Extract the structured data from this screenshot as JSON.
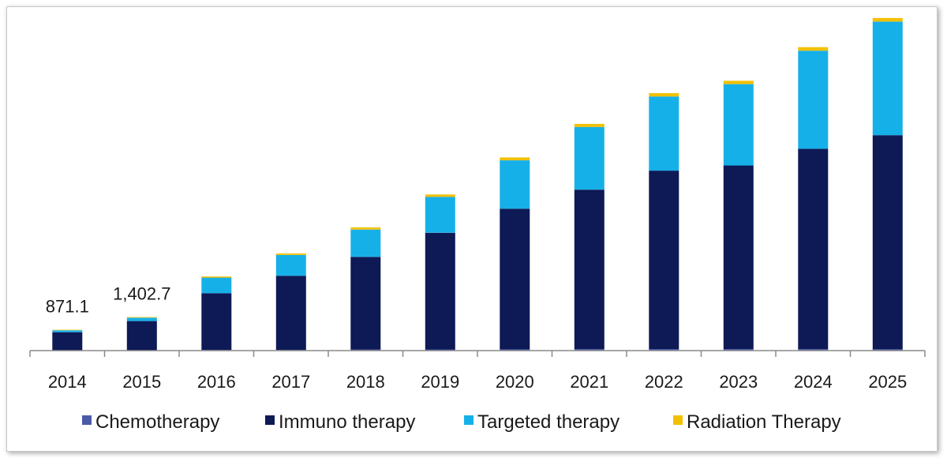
{
  "chart_data": {
    "type": "bar",
    "stacked": true,
    "categories": [
      "2014",
      "2015",
      "2016",
      "2017",
      "2018",
      "2019",
      "2020",
      "2021",
      "2022",
      "2023",
      "2024",
      "2025"
    ],
    "series": [
      {
        "name": "Chemotherapy",
        "color": "#4a5aa8",
        "values": [
          10,
          15,
          25,
          30,
          40,
          48,
          55,
          60,
          65,
          62,
          60,
          58
        ]
      },
      {
        "name": "Immuno therapy",
        "color": "#0d1a55",
        "values": [
          760,
          1220,
          2375,
          3100,
          3880,
          4880,
          5880,
          6670,
          7460,
          7680,
          8380,
          8950
        ]
      },
      {
        "name": "Targeted therapy",
        "color": "#16b0e8",
        "values": [
          80,
          140,
          650,
          870,
          1140,
          1500,
          2020,
          2620,
          3100,
          3400,
          4100,
          4750
        ]
      },
      {
        "name": "Radiation Therapy",
        "color": "#f2c000",
        "values": [
          21.1,
          27.7,
          50,
          60,
          90,
          100,
          120,
          130,
          140,
          140,
          150,
          150
        ]
      }
    ],
    "data_labels": [
      {
        "category": "2014",
        "text": "871.1"
      },
      {
        "category": "2015",
        "text": "1,402.7"
      }
    ],
    "ylim": [
      0,
      14000
    ],
    "grid": false,
    "legend": "bottom"
  }
}
